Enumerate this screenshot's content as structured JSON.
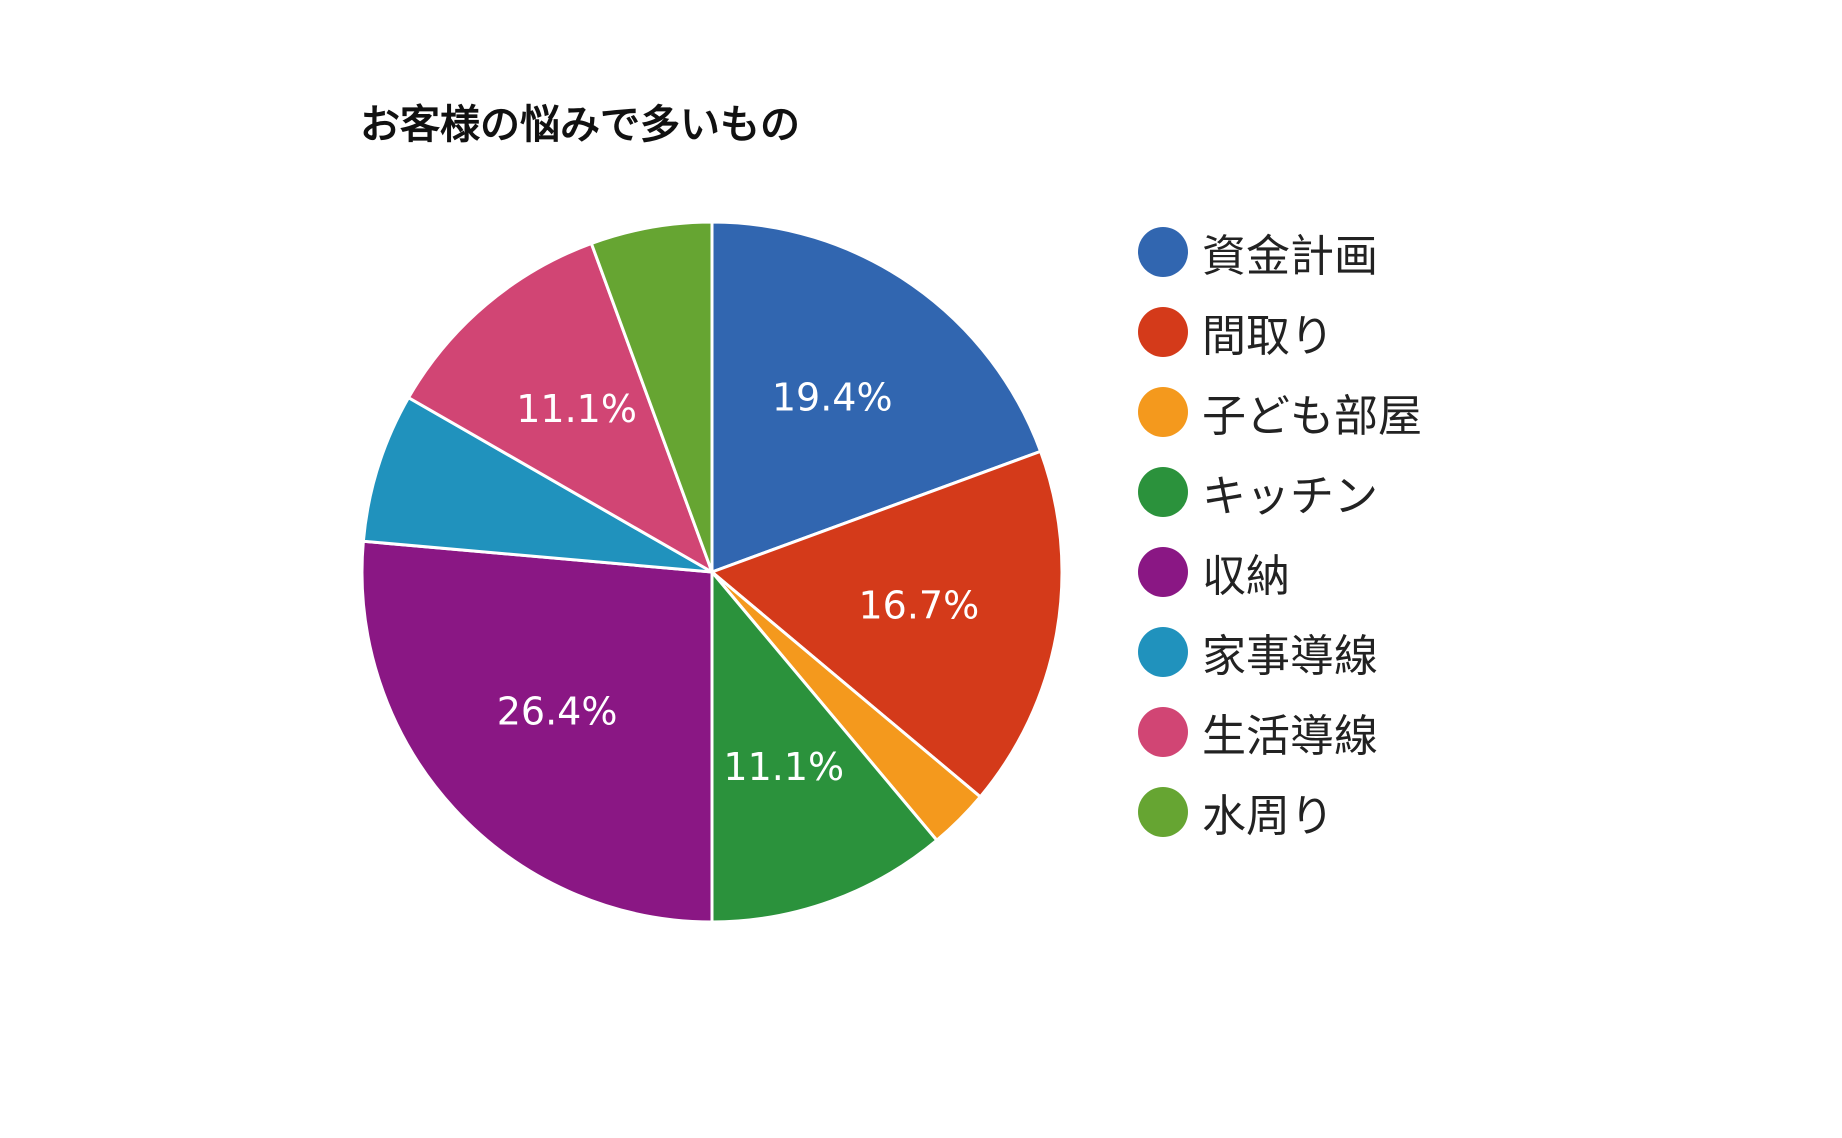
{
  "chart_data": {
    "type": "pie",
    "title": "お客様の悩みで多いもの",
    "slices": [
      {
        "label": "資金計画",
        "value": 19.4,
        "color": "#3166b0",
        "value_label": "19.4%"
      },
      {
        "label": "間取り",
        "value": 16.7,
        "color": "#d43a1a",
        "value_label": "16.7%"
      },
      {
        "label": "子ども部屋",
        "value": 2.8,
        "color": "#f4991d",
        "value_label": ""
      },
      {
        "label": "キッチン",
        "value": 11.1,
        "color": "#2b923c",
        "value_label": "11.1%"
      },
      {
        "label": "収納",
        "value": 26.4,
        "color": "#8a1784",
        "value_label": "26.4%"
      },
      {
        "label": "家事導線",
        "value": 6.9,
        "color": "#2092bd",
        "value_label": ""
      },
      {
        "label": "生活導線",
        "value": 11.1,
        "color": "#d14574",
        "value_label": "11.1%"
      },
      {
        "label": "水周り",
        "value": 5.6,
        "color": "#66a532",
        "value_label": ""
      }
    ],
    "legend_position": "right"
  }
}
